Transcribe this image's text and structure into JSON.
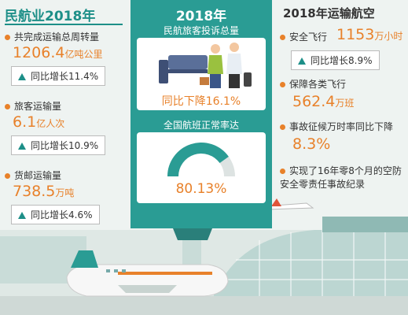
{
  "left": {
    "title": "民航业2018年",
    "items": [
      {
        "label": "共完成运输总周转量",
        "value": "1206.4",
        "unit": "亿吨公里",
        "change": "同比增长11.4%"
      },
      {
        "label": "旅客运输量",
        "value": "6.1",
        "unit": "亿人次",
        "change": "同比增长10.9%"
      },
      {
        "label": "货邮运输量",
        "value": "738.5",
        "unit": "万吨",
        "change": "同比增长4.6%"
      }
    ]
  },
  "center": {
    "title": "2018年",
    "complaints": {
      "label": "民航旅客投诉总量",
      "change": "同比下降16.1%"
    },
    "punctuality": {
      "label": "全国航班正常率达",
      "rate": {
        "value": 80.13,
        "label": "80.13%"
      }
    }
  },
  "right": {
    "title": "2018年运输航空",
    "items": [
      {
        "label": "安全飞行",
        "value": "1153",
        "unit": "万小时",
        "change": "同比增长8.9%"
      },
      {
        "label": "保障各类飞行",
        "value": "562.4",
        "unit": "万班"
      },
      {
        "label": "事故征候万时率同比下降",
        "value": "8.3%"
      },
      {
        "label": "实现了16年零8个月的空防安全零责任事故纪录"
      }
    ]
  }
}
